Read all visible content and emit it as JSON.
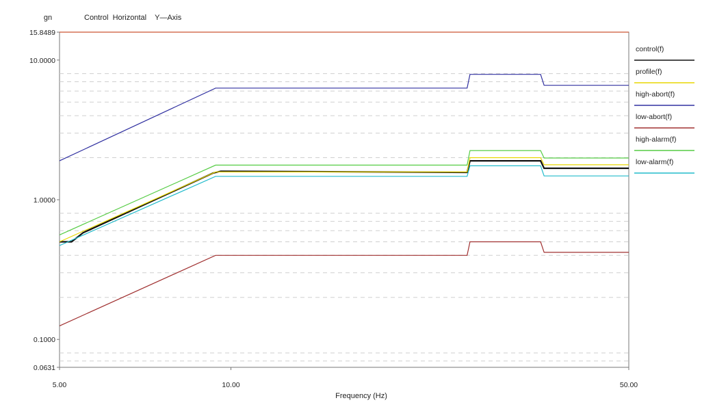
{
  "chart_data": {
    "type": "line",
    "title": "Control  Horizontal    Y—Axis",
    "ylabel": "gn",
    "xlabel": "Frequency (Hz)",
    "xscale": "log",
    "yscale": "log",
    "xlim": [
      5,
      50
    ],
    "ylim": [
      0.0631,
      15.8489
    ],
    "x_ticks": [
      {
        "value": 5,
        "label": "5.00"
      },
      {
        "value": 10,
        "label": "10.00"
      },
      {
        "value": 50,
        "label": "50.00"
      }
    ],
    "y_ticks": [
      {
        "value": 15.8489,
        "label": "15.8489"
      },
      {
        "value": 10,
        "label": "10.0000"
      },
      {
        "value": 1,
        "label": "1.0000"
      },
      {
        "value": 0.1,
        "label": "0.1000"
      },
      {
        "value": 0.0631,
        "label": "0.0631"
      }
    ],
    "legend_position": "right",
    "grid": true,
    "series": [
      {
        "name": "control(f)",
        "color": "#111111",
        "x": [
          5,
          5.25,
          5.5,
          9.3,
          9.6,
          26,
          26.3,
          35,
          35.5,
          50
        ],
        "y": [
          0.5,
          0.5,
          0.58,
          1.55,
          1.6,
          1.57,
          1.9,
          1.9,
          1.68,
          1.68
        ]
      },
      {
        "name": "profile(f)",
        "color": "#e8d600",
        "x": [
          5,
          9.4,
          26,
          26.3,
          35,
          35.5,
          50
        ],
        "y": [
          0.5,
          1.58,
          1.58,
          2.0,
          2.0,
          1.78,
          1.78
        ]
      },
      {
        "name": "high-abort(f)",
        "color": "#3030a0",
        "x": [
          5,
          9.4,
          26,
          26.3,
          35,
          35.5,
          50
        ],
        "y": [
          1.9,
          6.3,
          6.3,
          7.9,
          7.9,
          6.6,
          6.6
        ]
      },
      {
        "name": "low-abort(f)",
        "color": "#a03030",
        "x": [
          5,
          9.4,
          26,
          26.3,
          35,
          35.5,
          50
        ],
        "y": [
          0.125,
          0.4,
          0.4,
          0.5,
          0.5,
          0.42,
          0.42
        ]
      },
      {
        "name": "high-alarm(f)",
        "color": "#55cc44",
        "x": [
          5,
          9.4,
          26,
          26.3,
          35,
          35.5,
          50
        ],
        "y": [
          0.56,
          1.77,
          1.77,
          2.25,
          2.25,
          1.99,
          1.99
        ]
      },
      {
        "name": "low-alarm(f)",
        "color": "#22bbcc",
        "x": [
          5,
          9.4,
          26,
          26.3,
          35,
          35.5,
          50
        ],
        "y": [
          0.47,
          1.47,
          1.47,
          1.75,
          1.75,
          1.48,
          1.48
        ]
      },
      {
        "name": "",
        "color": "#cc5533",
        "x": [
          5,
          50
        ],
        "y": [
          15.8489,
          15.8489
        ]
      }
    ]
  }
}
